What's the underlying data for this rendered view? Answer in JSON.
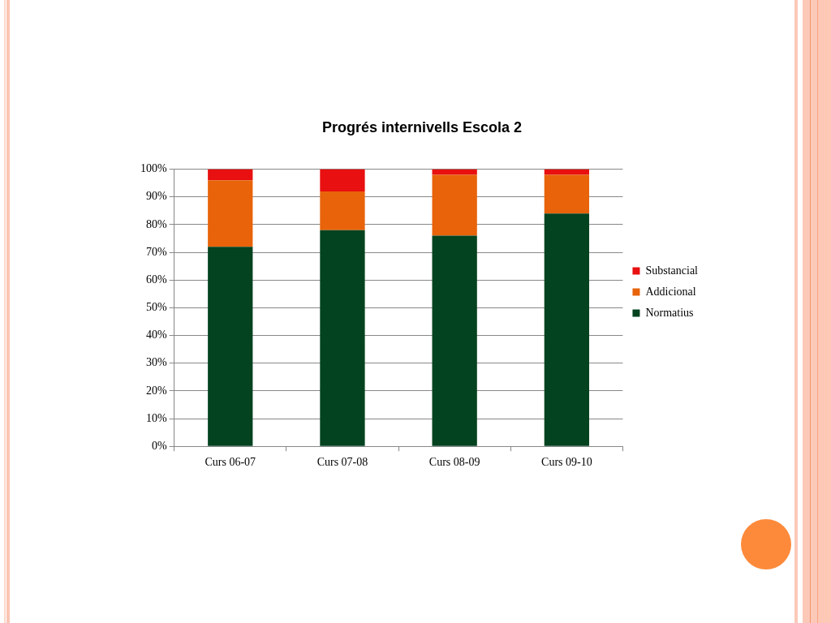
{
  "chart_data": {
    "type": "bar",
    "title": "Progrés internivells Escola 2",
    "categories": [
      "Curs 06-07",
      "Curs 07-08",
      "Curs 08-09",
      "Curs 09-10"
    ],
    "series": [
      {
        "name": "Normatius",
        "color": "#03431f",
        "values": [
          72,
          78,
          76,
          84
        ]
      },
      {
        "name": "Addicional",
        "color": "#e8630a",
        "values": [
          24,
          14,
          22,
          14
        ]
      },
      {
        "name": "Substancial",
        "color": "#e81010",
        "values": [
          4,
          8,
          2,
          2
        ]
      }
    ],
    "stacked": true,
    "ylim": [
      0,
      100
    ],
    "yticks": [
      {
        "value": 0,
        "label": "0%"
      },
      {
        "value": 10,
        "label": "10%"
      },
      {
        "value": 20,
        "label": "20%"
      },
      {
        "value": 30,
        "label": "30%"
      },
      {
        "value": 40,
        "label": "40%"
      },
      {
        "value": 50,
        "label": "50%"
      },
      {
        "value": 60,
        "label": "60%"
      },
      {
        "value": 70,
        "label": "70%"
      },
      {
        "value": 80,
        "label": "80%"
      },
      {
        "value": 90,
        "label": "90%"
      },
      {
        "value": 100,
        "label": "100%"
      }
    ],
    "grid": "y",
    "legend": "right"
  }
}
